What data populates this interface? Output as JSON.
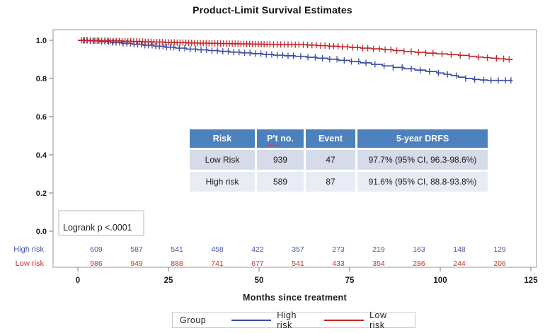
{
  "title": "Product-Limit Survival Estimates",
  "chart_data": {
    "type": "line",
    "subtype": "kaplan-meier-step",
    "title": "Product-Limit Survival Estimates",
    "xlabel": "Months since treatment",
    "ylabel": "",
    "xlim": [
      0,
      125
    ],
    "ylim": [
      0.0,
      1.0
    ],
    "xticks": [
      0,
      25,
      50,
      75,
      100,
      125
    ],
    "yticks": [
      1.0,
      0.8,
      0.6,
      0.4,
      0.2,
      0.0
    ],
    "grid": false,
    "legend_position": "bottom",
    "annotation": "Logrank p <.0001",
    "series": [
      {
        "name": "High risk",
        "color": "#3A4CA0",
        "points": [
          [
            0,
            1.0
          ],
          [
            3,
            0.997
          ],
          [
            6,
            0.993
          ],
          [
            9,
            0.989
          ],
          [
            12,
            0.984
          ],
          [
            15,
            0.979
          ],
          [
            18,
            0.974
          ],
          [
            21,
            0.969
          ],
          [
            24,
            0.964
          ],
          [
            27,
            0.959
          ],
          [
            30,
            0.954
          ],
          [
            33,
            0.95
          ],
          [
            36,
            0.946
          ],
          [
            39,
            0.942
          ],
          [
            42,
            0.938
          ],
          [
            45,
            0.934
          ],
          [
            48,
            0.93
          ],
          [
            51,
            0.926
          ],
          [
            54,
            0.922
          ],
          [
            57,
            0.919
          ],
          [
            60,
            0.916
          ],
          [
            63,
            0.911
          ],
          [
            66,
            0.906
          ],
          [
            69,
            0.901
          ],
          [
            72,
            0.895
          ],
          [
            75,
            0.889
          ],
          [
            78,
            0.882
          ],
          [
            81,
            0.874
          ],
          [
            84,
            0.866
          ],
          [
            87,
            0.858
          ],
          [
            90,
            0.851
          ],
          [
            93,
            0.844
          ],
          [
            96,
            0.837
          ],
          [
            99,
            0.829
          ],
          [
            101,
            0.822
          ],
          [
            103,
            0.815
          ],
          [
            105,
            0.807
          ],
          [
            107,
            0.8
          ],
          [
            109,
            0.795
          ],
          [
            111,
            0.792
          ],
          [
            113,
            0.79
          ],
          [
            120,
            0.79
          ]
        ],
        "censor_times": [
          1.5,
          2.5,
          3.5,
          4.5,
          5.5,
          6.5,
          7.5,
          8.5,
          9.5,
          10.5,
          11.5,
          12.5,
          13.5,
          14.5,
          15.5,
          16.5,
          17.5,
          18.5,
          19.5,
          20.5,
          21.5,
          22.5,
          23.5,
          24.5,
          25.5,
          26.5,
          28,
          29.5,
          31,
          32.5,
          34,
          35.5,
          37,
          38.5,
          40,
          41.5,
          43,
          44.5,
          46,
          47.5,
          49,
          50.5,
          52,
          53.5,
          55,
          56.5,
          58,
          59.5,
          61.5,
          63.5,
          65.5,
          67.5,
          69.5,
          71.5,
          73.5,
          75.5,
          77.5,
          79.5,
          82,
          84.5,
          87,
          89.5,
          92,
          94.5,
          97,
          99.5,
          102,
          104.5,
          107,
          109.5,
          112,
          114,
          116,
          118,
          119.5
        ]
      },
      {
        "name": "Low risk",
        "color": "#C0282A",
        "points": [
          [
            0,
            1.0
          ],
          [
            3,
            0.999
          ],
          [
            6,
            0.998
          ],
          [
            9,
            0.997
          ],
          [
            12,
            0.995
          ],
          [
            15,
            0.994
          ],
          [
            18,
            0.992
          ],
          [
            21,
            0.991
          ],
          [
            24,
            0.989
          ],
          [
            27,
            0.988
          ],
          [
            30,
            0.986
          ],
          [
            33,
            0.985
          ],
          [
            36,
            0.984
          ],
          [
            39,
            0.983
          ],
          [
            42,
            0.982
          ],
          [
            45,
            0.981
          ],
          [
            48,
            0.98
          ],
          [
            51,
            0.979
          ],
          [
            54,
            0.978
          ],
          [
            57,
            0.978
          ],
          [
            60,
            0.977
          ],
          [
            63,
            0.975
          ],
          [
            66,
            0.972
          ],
          [
            69,
            0.969
          ],
          [
            72,
            0.966
          ],
          [
            75,
            0.963
          ],
          [
            78,
            0.959
          ],
          [
            81,
            0.955
          ],
          [
            84,
            0.951
          ],
          [
            87,
            0.946
          ],
          [
            90,
            0.941
          ],
          [
            93,
            0.937
          ],
          [
            96,
            0.933
          ],
          [
            99,
            0.929
          ],
          [
            102,
            0.925
          ],
          [
            105,
            0.921
          ],
          [
            108,
            0.916
          ],
          [
            110,
            0.912
          ],
          [
            112,
            0.909
          ],
          [
            114,
            0.906
          ],
          [
            116,
            0.903
          ],
          [
            118,
            0.9
          ],
          [
            120,
            0.9
          ]
        ],
        "censor_times": [
          1,
          1.8,
          2.6,
          3.4,
          4.2,
          5,
          5.8,
          6.6,
          7.4,
          8.2,
          9,
          9.8,
          10.6,
          11.4,
          12.2,
          13,
          13.8,
          14.6,
          15.4,
          16.2,
          17,
          17.8,
          18.6,
          19.4,
          20.2,
          21,
          21.8,
          22.6,
          23.4,
          24.2,
          25,
          25.8,
          26.6,
          27.4,
          28.2,
          29,
          29.8,
          30.6,
          31.4,
          32.2,
          33,
          33.8,
          34.6,
          35.4,
          36.2,
          37,
          37.8,
          38.6,
          39.4,
          40.2,
          41,
          41.8,
          42.6,
          43.4,
          44.2,
          45,
          45.8,
          46.6,
          47.4,
          48.2,
          49,
          49.8,
          50.6,
          51.4,
          52.2,
          53,
          54,
          55,
          56,
          57,
          58,
          59,
          60,
          61,
          62.2,
          63.4,
          64.6,
          65.8,
          67,
          68.2,
          69.4,
          70.6,
          71.8,
          73,
          74.4,
          75.8,
          77.2,
          78.6,
          80,
          81.6,
          83.2,
          84.8,
          86.4,
          88,
          90,
          92,
          94,
          96,
          98,
          100.5,
          103,
          105.5,
          108,
          110.5,
          113,
          115.5,
          117.5,
          119
        ]
      }
    ],
    "at_risk": {
      "rows": [
        {
          "label": "High risk",
          "color": "#4356A8",
          "values": [
            "609",
            "587",
            "541",
            "458",
            "422",
            "357",
            "273",
            "219",
            "163",
            "148",
            "129"
          ]
        },
        {
          "label": "Low risk",
          "color": "#C23832",
          "values": [
            "986",
            "949",
            "888",
            "741",
            "677",
            "541",
            "433",
            "354",
            "286",
            "244",
            "206"
          ]
        }
      ]
    },
    "legend": {
      "title": "Group",
      "entries": [
        {
          "label": "High risk",
          "color": "#3A4CA0"
        },
        {
          "label": "Low risk",
          "color": "#C0282A"
        }
      ]
    }
  },
  "results_table": {
    "headers": [
      "Risk",
      "P't no.",
      "Event",
      "5-year DRFS"
    ],
    "pt_main": "P't",
    "pt_rest": " no.",
    "rows": [
      {
        "risk": "Low Risk",
        "pt_no": "939",
        "event": "47",
        "drfs": "97.7% (95% CI, 96.3-98.6%)"
      },
      {
        "risk": "High risk",
        "pt_no": "589",
        "event": "87",
        "drfs": "91.6% (95% CI, 88.8-93.8%)"
      }
    ]
  },
  "logrank_label": "Logrank p <.0001",
  "xaxis_label": "Months since treatment"
}
